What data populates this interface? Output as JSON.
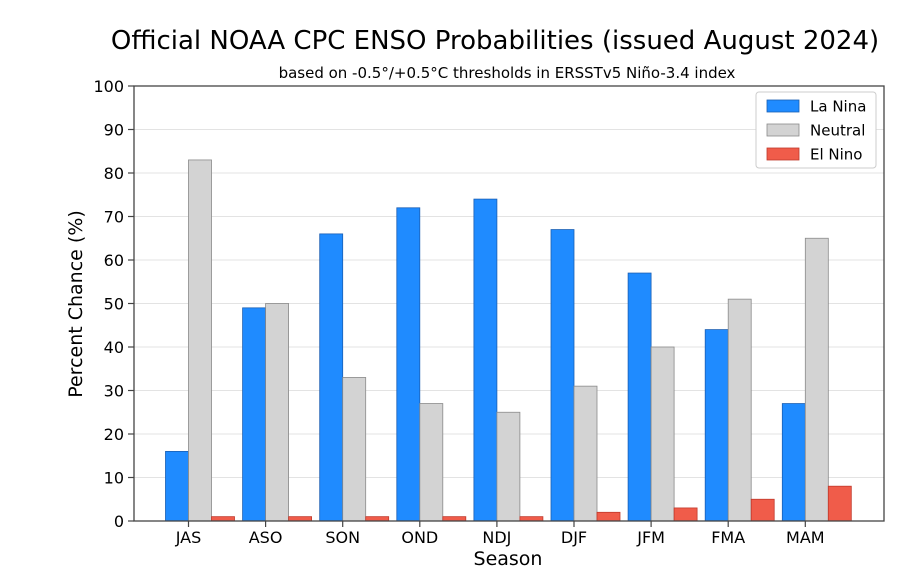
{
  "chart_data": {
    "type": "bar",
    "title": "Official NOAA CPC ENSO Probabilities (issued August 2024)",
    "subtitle": "based on -0.5°/+0.5°C thresholds in ERSSTv5 Niño-3.4 index",
    "xlabel": "Season",
    "ylabel": "Percent Chance (%)",
    "ylim": [
      0,
      100
    ],
    "yticks": [
      0,
      10,
      20,
      30,
      40,
      50,
      60,
      70,
      80,
      90,
      100
    ],
    "grid": true,
    "legend_position": "top-right",
    "categories": [
      "JAS",
      "ASO",
      "SON",
      "OND",
      "NDJ",
      "DJF",
      "JFM",
      "FMA",
      "MAM"
    ],
    "series": [
      {
        "name": "La Nina",
        "color": "#1f8bff",
        "values": [
          16,
          49,
          66,
          72,
          74,
          67,
          57,
          44,
          27
        ]
      },
      {
        "name": "Neutral",
        "color": "#d3d3d3",
        "values": [
          83,
          50,
          33,
          27,
          25,
          31,
          40,
          51,
          65
        ]
      },
      {
        "name": "El Nino",
        "color": "#f05c4a",
        "values": [
          1,
          1,
          1,
          1,
          1,
          2,
          3,
          5,
          8
        ]
      }
    ]
  }
}
